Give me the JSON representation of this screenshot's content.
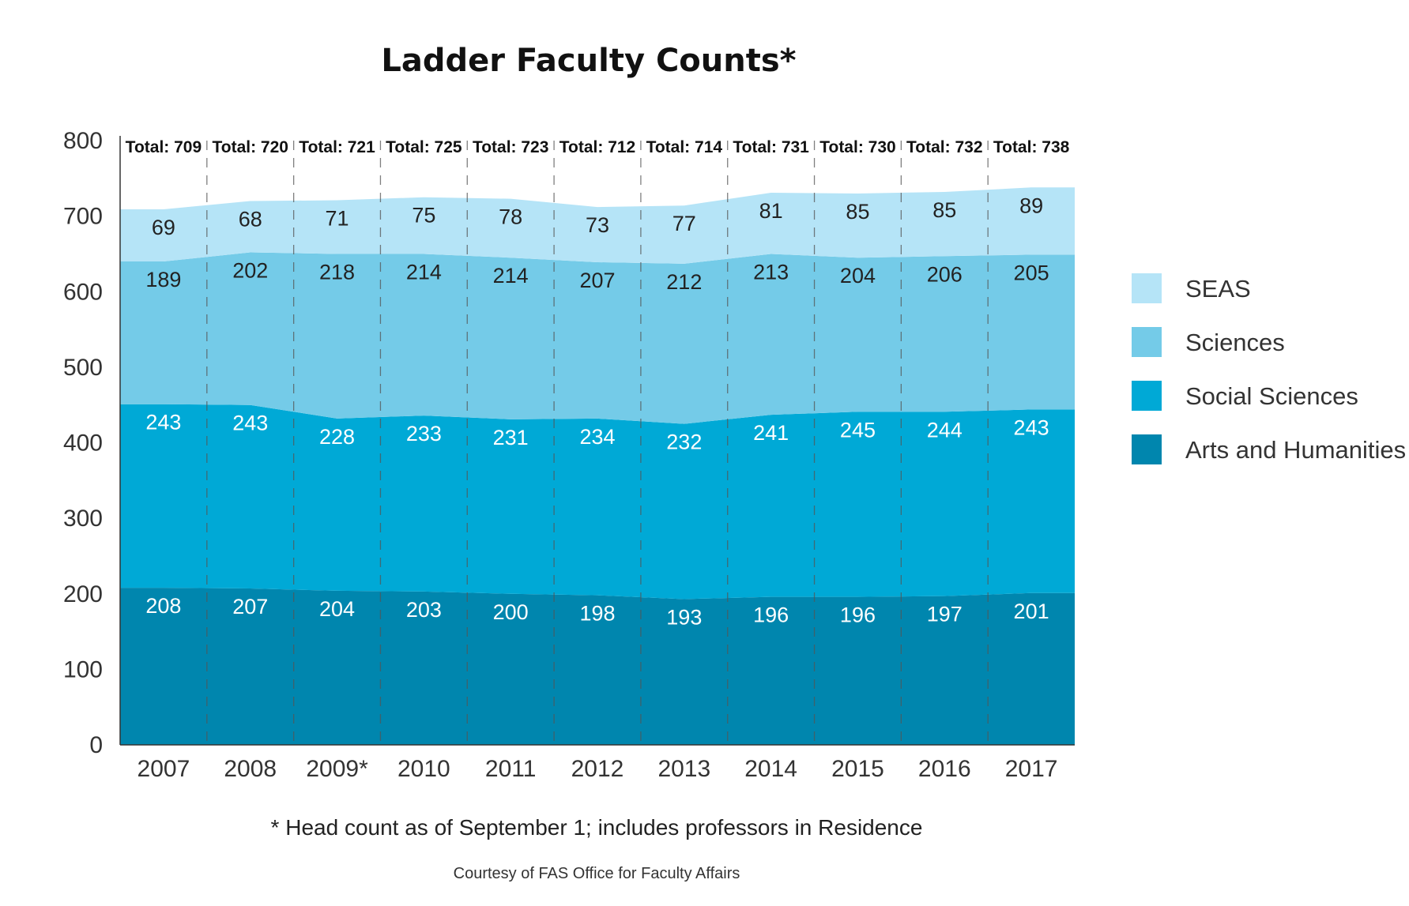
{
  "chart_data": {
    "type": "area",
    "stacked": true,
    "title": "Ladder Faculty Counts*",
    "xlabel": "",
    "ylabel": "",
    "ylim": [
      0,
      800
    ],
    "yticks": [
      "0",
      "100",
      "200",
      "300",
      "400",
      "500",
      "600",
      "700",
      "800"
    ],
    "categories": [
      "2007",
      "2008",
      "2009*",
      "2010",
      "2011",
      "2012",
      "2013",
      "2014",
      "2015",
      "2016",
      "2017"
    ],
    "totals": [
      "Total: 709",
      "Total: 720",
      "Total: 721",
      "Total: 725",
      "Total: 723",
      "Total: 712",
      "Total: 714",
      "Total: 731",
      "Total: 730",
      "Total: 732",
      "Total: 738"
    ],
    "series": [
      {
        "name": "Arts and Humanities",
        "color": "#0086ae",
        "label_color": "#ffffff",
        "values": [
          208,
          207,
          204,
          203,
          200,
          198,
          193,
          196,
          196,
          197,
          201
        ]
      },
      {
        "name": "Social Sciences",
        "color": "#00a9d6",
        "label_color": "#ffffff",
        "values": [
          243,
          243,
          228,
          233,
          231,
          234,
          232,
          241,
          245,
          244,
          243
        ]
      },
      {
        "name": "Sciences",
        "color": "#74cbe8",
        "label_color": "#222222",
        "values": [
          189,
          202,
          218,
          214,
          214,
          207,
          212,
          213,
          204,
          206,
          205
        ]
      },
      {
        "name": "SEAS",
        "color": "#b5e4f7",
        "label_color": "#222222",
        "values": [
          69,
          68,
          71,
          75,
          78,
          73,
          77,
          81,
          85,
          85,
          89
        ]
      }
    ],
    "legend_position": "right",
    "grid": false,
    "footnote": "* Head count as of September 1; includes professors in Residence",
    "credit": "Courtesy of FAS Office for Faculty Affairs"
  }
}
